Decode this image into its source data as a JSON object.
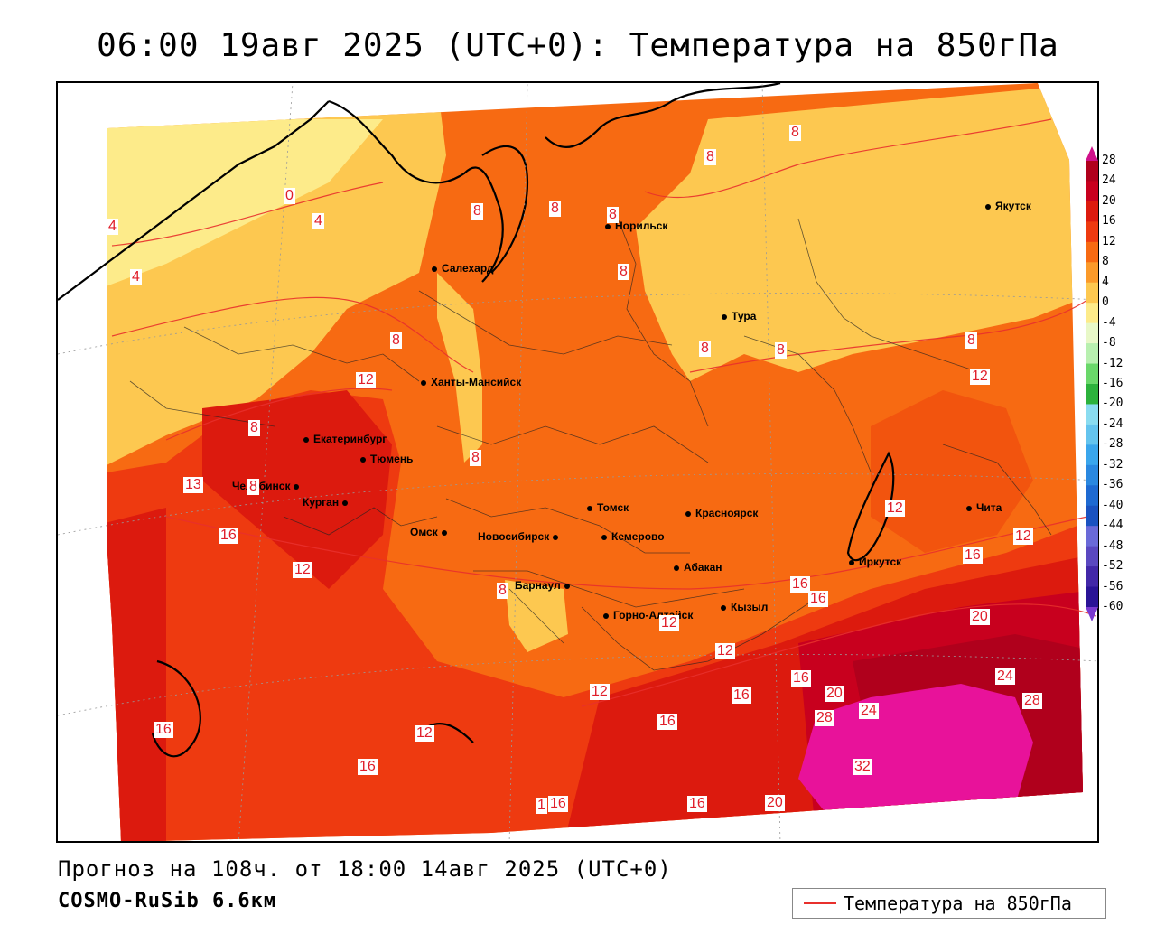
{
  "title": "06:00 19авг 2025 (UTC+0): Температура на 850гПа",
  "footer": {
    "forecast": "Прогноз на 108ч. от 18:00 14авг 2025 (UTC+0)",
    "model": "COSMO-RuSib 6.6км"
  },
  "legend": {
    "contour_label": "Температура на 850гПа",
    "contour_color": "#e8302c"
  },
  "colorbar": {
    "ticks": [
      "28",
      "24",
      "20",
      "16",
      "12",
      "8",
      "4",
      "0",
      "-4",
      "-8",
      "-12",
      "-16",
      "-20",
      "-24",
      "-28",
      "-32",
      "-36",
      "-40",
      "-44",
      "-48",
      "-52",
      "-56",
      "-60"
    ],
    "colors": [
      "#b0001c",
      "#c8001e",
      "#dc1a0e",
      "#ee3a10",
      "#f76a12",
      "#fb9a2a",
      "#fdc850",
      "#fdeb8a",
      "#e8f8c8",
      "#b8f0b0",
      "#6ad86a",
      "#2cb23c",
      "#8adcf0",
      "#64c4ee",
      "#3aa6ec",
      "#2a88e0",
      "#1e6ad2",
      "#1a52c0",
      "#6a6ad8",
      "#5a48c0",
      "#4228a8",
      "#2a1496"
    ]
  },
  "cities": [
    {
      "name": "Якутск"
    },
    {
      "name": "Норильск"
    },
    {
      "name": "Салехард"
    },
    {
      "name": "Тура"
    },
    {
      "name": "Ханты-Мансийск"
    },
    {
      "name": "Екатеринбург"
    },
    {
      "name": "Тюмень"
    },
    {
      "name": "Челябинск"
    },
    {
      "name": "Курган"
    },
    {
      "name": "Омск"
    },
    {
      "name": "Новосибирск"
    },
    {
      "name": "Томск"
    },
    {
      "name": "Кемерово"
    },
    {
      "name": "Красноярск"
    },
    {
      "name": "Абакан"
    },
    {
      "name": "Барнаул"
    },
    {
      "name": "Горно-Алтайск"
    },
    {
      "name": "Кызыл"
    },
    {
      "name": "Иркутск"
    },
    {
      "name": "Чита"
    }
  ],
  "contour_labels": [
    "8",
    "8",
    "8",
    "8",
    "8",
    "0",
    "4",
    "4",
    "4",
    "8",
    "8",
    "8",
    "8",
    "8",
    "12",
    "8",
    "12",
    "8",
    "13",
    "16",
    "12",
    "12",
    "8",
    "12",
    "12",
    "16",
    "16",
    "16",
    "20",
    "24",
    "28",
    "20",
    "24",
    "16",
    "12",
    "16",
    "12",
    "28",
    "32",
    "16",
    "16",
    "16",
    "1",
    "16",
    "20",
    "12",
    "8",
    "16"
  ]
}
